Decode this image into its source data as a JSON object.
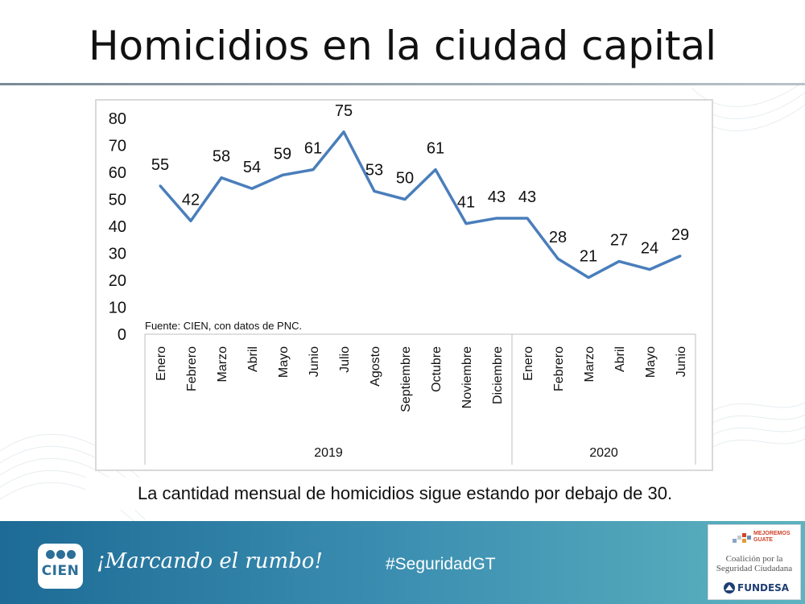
{
  "slide": {
    "title": "Homicidios en la ciudad capital",
    "source_note": "Fuente: CIEN, con datos de PNC.",
    "caption": "La cantidad mensual de homicidios sigue estando por debajo de 30."
  },
  "footer": {
    "logo_text": "CIEN",
    "slogan": "¡Marcando el rumbo!",
    "hashtag": "#SeguridadGT",
    "partner_line1": "MEJOREMOS",
    "partner_line2": "GUATE",
    "partner_coalition": "Coalición por la Seguridad Ciudadana",
    "partner_org": "FUNDESA"
  },
  "colors": {
    "line": "#4a7ebb",
    "footer_start": "#1d6b96",
    "footer_end": "#5db3bf"
  },
  "chart_data": {
    "type": "line",
    "title": "",
    "xlabel": "",
    "ylabel": "",
    "ylim": [
      0,
      80
    ],
    "yticks": [
      0,
      10,
      20,
      30,
      40,
      50,
      60,
      70,
      80
    ],
    "grid": false,
    "legend": "none",
    "categories": [
      "Enero",
      "Febrero",
      "Marzo",
      "Abril",
      "Mayo",
      "Junio",
      "Julio",
      "Agosto",
      "Septiembre",
      "Octubre",
      "Noviembre",
      "Diciembre",
      "Enero",
      "Febrero",
      "Marzo",
      "Abril",
      "Mayo",
      "Junio"
    ],
    "groups": [
      {
        "label": "2019",
        "count": 12
      },
      {
        "label": "2020",
        "count": 6
      }
    ],
    "series": [
      {
        "values": [
          55,
          42,
          58,
          54,
          59,
          61,
          75,
          53,
          50,
          61,
          41,
          43,
          43,
          28,
          21,
          27,
          24,
          29
        ]
      }
    ]
  }
}
